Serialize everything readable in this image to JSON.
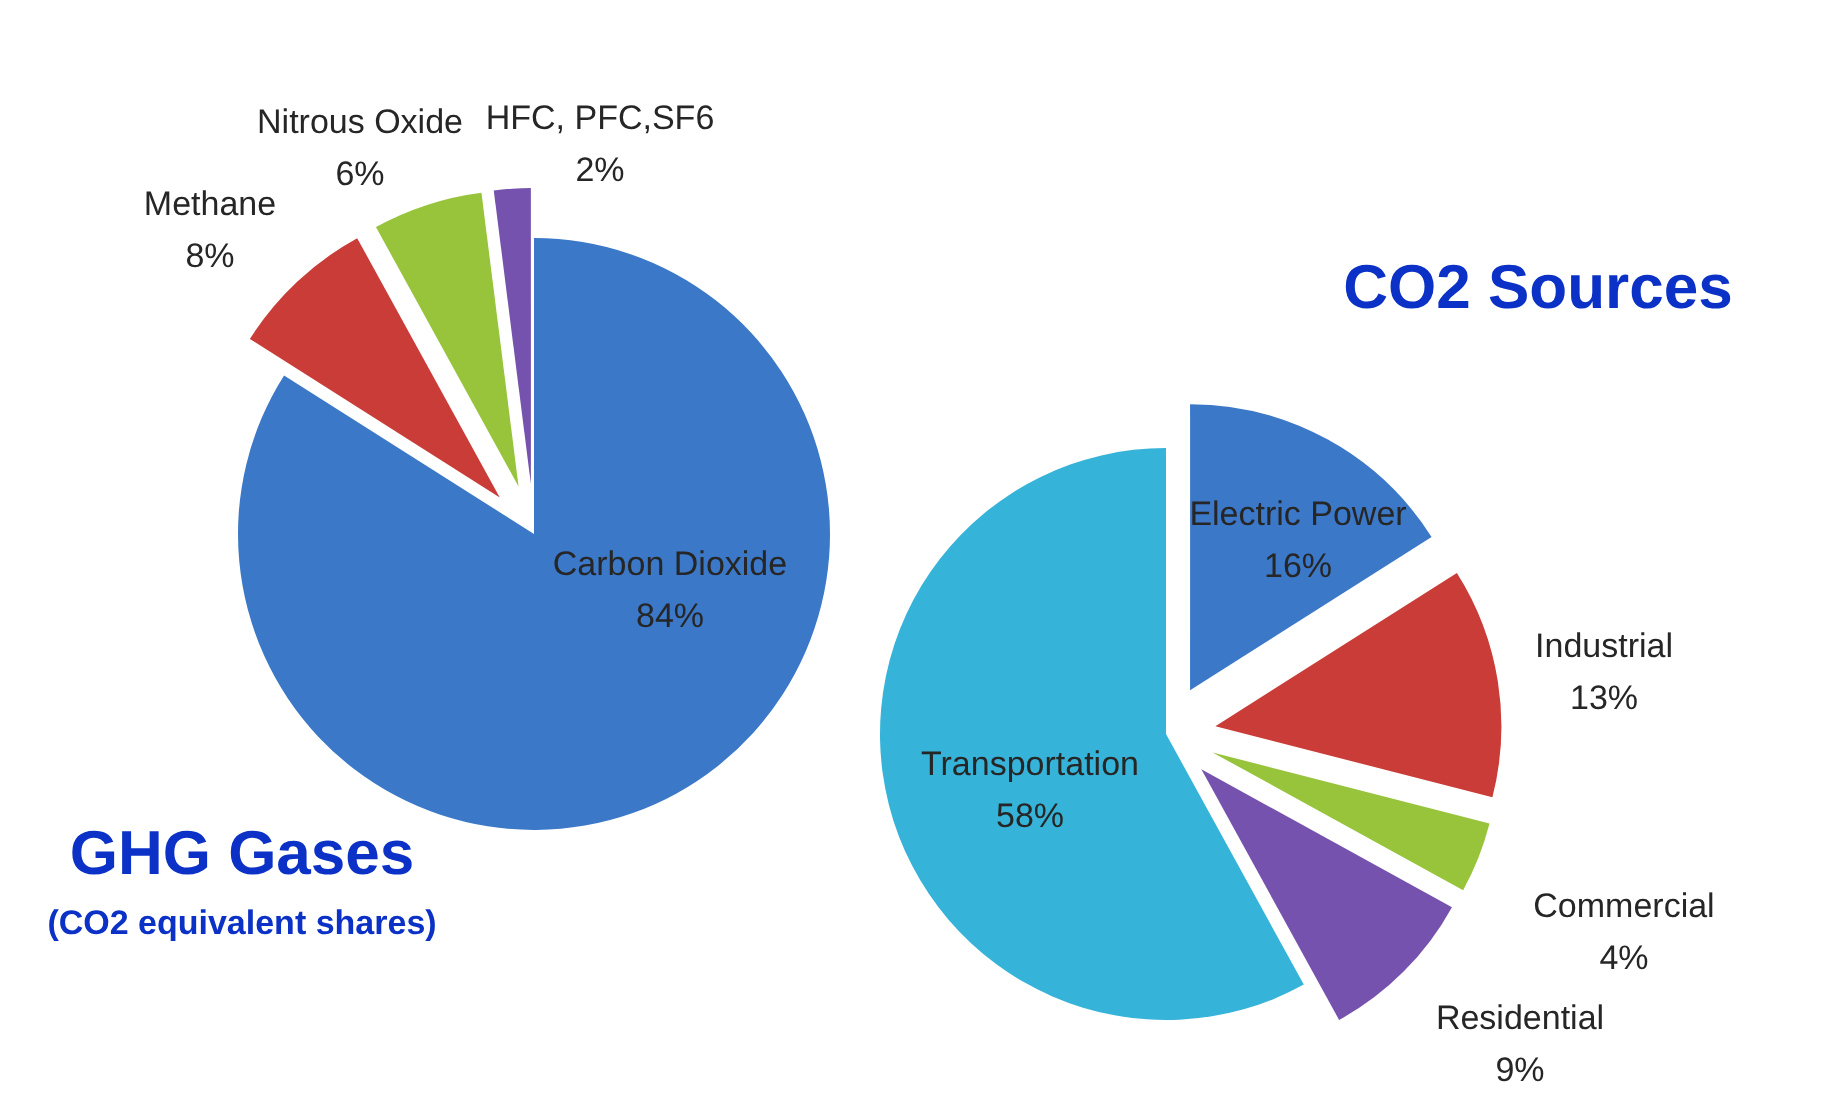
{
  "chart_data": [
    {
      "type": "pie",
      "title": "GHG Gases",
      "subtitle": "(CO2 equivalent shares)",
      "categories": [
        "Carbon Dioxide",
        "Methane",
        "Nitrous Oxide",
        "HFC, PFC,SF6"
      ],
      "values": [
        84,
        8,
        6,
        2
      ],
      "value_labels": [
        "84%",
        "8%",
        "6%",
        "2%"
      ],
      "colors": [
        "#3b78c8",
        "#c93c37",
        "#98c43c",
        "#7552ad"
      ]
    },
    {
      "type": "pie",
      "title": "CO2 Sources",
      "categories": [
        "Electric Power",
        "Industrial",
        "Commercial",
        "Residential",
        "Transportation"
      ],
      "values": [
        16,
        13,
        4,
        9,
        58
      ],
      "value_labels": [
        "16%",
        "13%",
        "4%",
        "9%",
        "58%"
      ],
      "colors": [
        "#3b78c8",
        "#c93c37",
        "#98c43c",
        "#7552ad",
        "#36b3d8"
      ]
    }
  ]
}
